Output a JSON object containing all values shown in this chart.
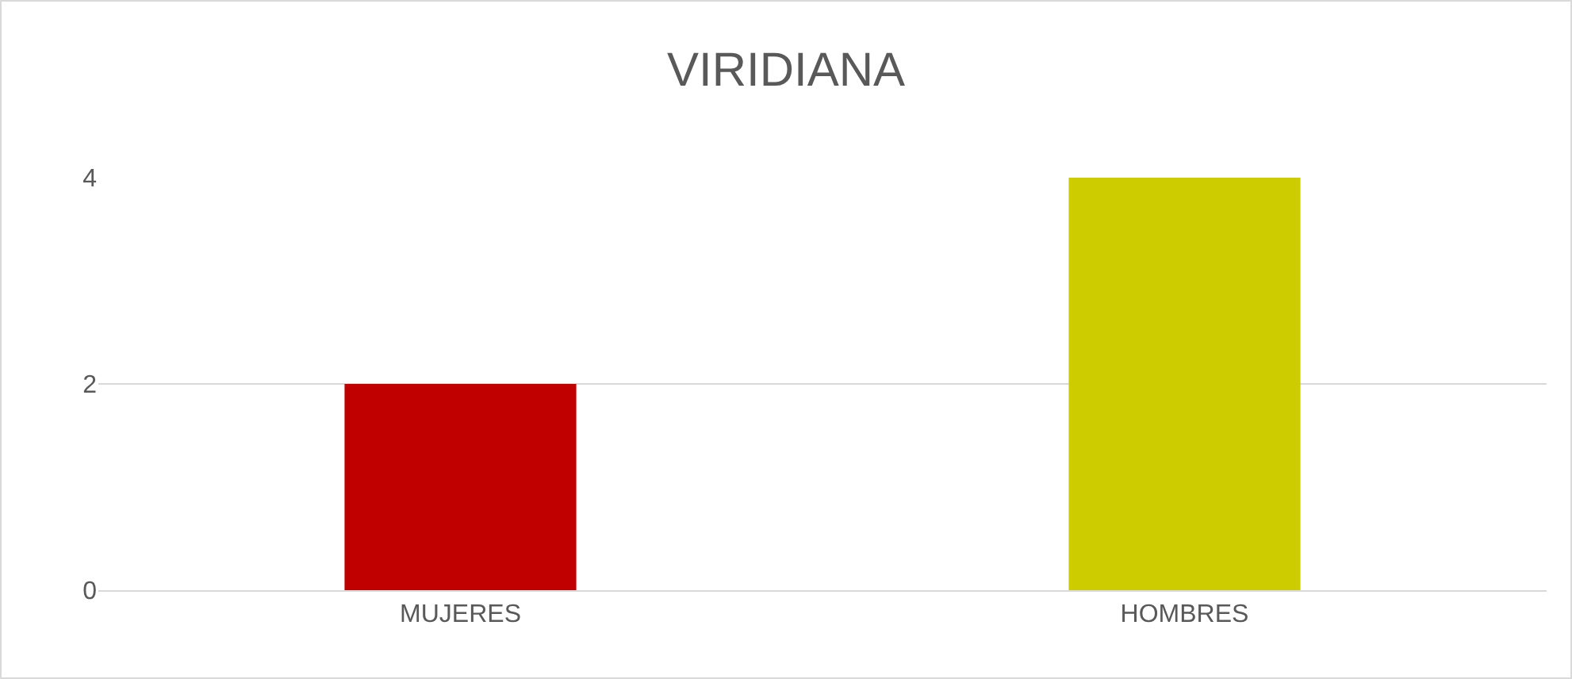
{
  "chart_data": {
    "type": "bar",
    "title": "VIRIDIANA",
    "categories": [
      "MUJERES",
      "HOMBRES"
    ],
    "values": [
      2,
      4
    ],
    "colors": [
      "#c00000",
      "#cccc00"
    ],
    "ylim": [
      0,
      4
    ],
    "yticks": [
      0,
      2,
      4
    ],
    "grid": "y"
  }
}
